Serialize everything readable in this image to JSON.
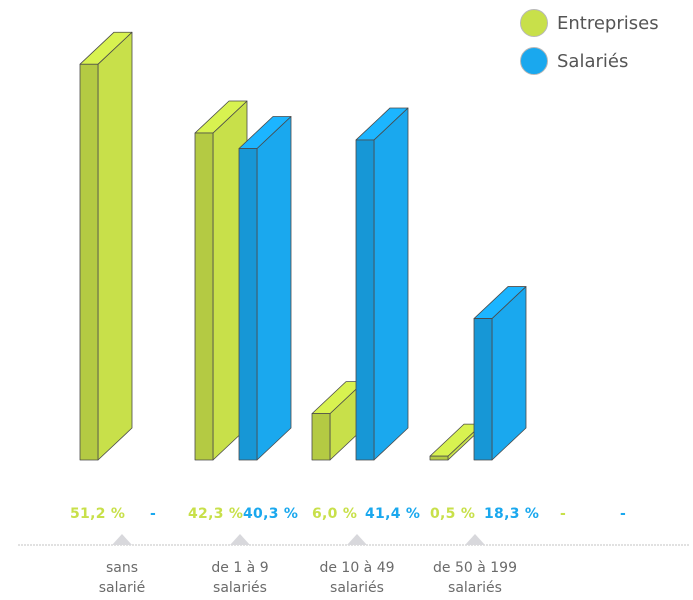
{
  "legend": {
    "entreprises_label": "Entreprises",
    "salaries_label": "Salariés"
  },
  "colors": {
    "entreprises": "#c8e04a",
    "salaries": "#1aa8ee",
    "axis_line": "#cfcfcf",
    "marker": "#d8d8dc"
  },
  "chart_data": {
    "type": "bar",
    "categories": [
      "sans salarié",
      "de 1 à 9 salariés",
      "de 10 à 49 salariés",
      "de 50 à 199 salariés",
      ""
    ],
    "category_lines": [
      [
        "sans",
        "salarié"
      ],
      [
        "de 1 à 9",
        "salariés"
      ],
      [
        "de 10 à 49",
        "salariés"
      ],
      [
        "de 50 à 199",
        "salariés"
      ],
      [
        "",
        ""
      ]
    ],
    "series": [
      {
        "name": "Entreprises",
        "values": [
          51.2,
          42.3,
          6.0,
          0.5,
          null
        ],
        "labels": [
          "51,2 %",
          "42,3 %",
          "6,0 %",
          "0,5 %",
          "-"
        ]
      },
      {
        "name": "Salariés",
        "values": [
          null,
          40.3,
          41.4,
          18.3,
          null
        ],
        "labels": [
          "-",
          "40,3 %",
          "41,4 %",
          "18,3 %",
          "-"
        ]
      }
    ],
    "grid": false,
    "legend_position": "top-right"
  }
}
